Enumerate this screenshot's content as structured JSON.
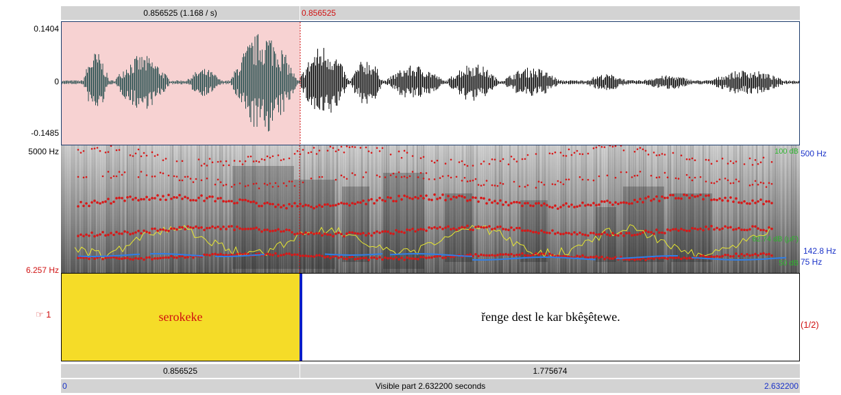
{
  "top_bar": {
    "selection_duration": "0.856525 (1.168 / s)",
    "cursor_time": "0.856525"
  },
  "waveform": {
    "y_max": "0.1404",
    "y_zero": "0",
    "y_min": "-0.1485"
  },
  "spectrogram": {
    "top_freq": "5000 Hz",
    "bottom_freq": "6.257 Hz",
    "right_top_blue": "500 Hz",
    "right_top_green": "100 dB",
    "right_mid_green": "62.74 dB (μF)",
    "right_pitch_blue": "142.8 Hz",
    "right_bottom_blue": "75 Hz",
    "right_bottom_green": "50 dB"
  },
  "textgrid": {
    "tier_marker": "1",
    "tier_count": "(1/2)",
    "interval_1_text": "serokeke",
    "interval_2_text": "řenge dest le kar bkêşêtewe."
  },
  "bottom_bars": {
    "interval_1_duration": "0.856525",
    "interval_2_duration": "1.775674",
    "start_time": "0",
    "visible_part": "Visible part 2.632200 seconds",
    "end_time": "2.632200"
  },
  "colors": {
    "selection_fill": "#f7d2d2",
    "selected_interval": "#f5dc28",
    "formant": "#d81818",
    "pitch": "#2f7fe8",
    "intensity": "#e8e830"
  }
}
